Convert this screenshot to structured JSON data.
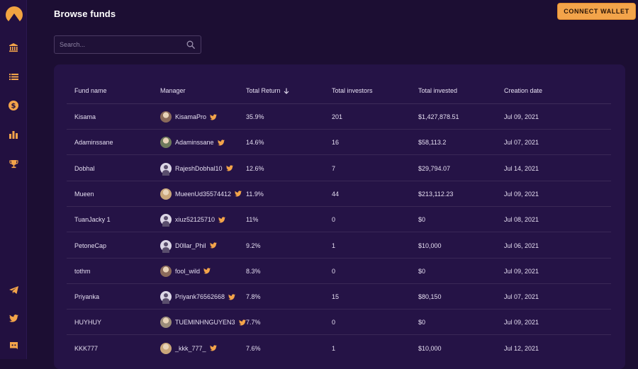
{
  "header": {
    "title": "Browse funds",
    "connect_label": "CONNECT WALLET"
  },
  "search": {
    "placeholder": "Search..."
  },
  "colors": {
    "accent": "#f3a44a",
    "background": "#1c0e33",
    "panel": "#251346"
  },
  "sidebar": {
    "icons": [
      "logo-icon",
      "bank-icon",
      "list-icon",
      "dollar-icon",
      "bar-chart-icon",
      "trophy-icon",
      "telegram-icon",
      "twitter-icon",
      "discord-icon"
    ]
  },
  "table": {
    "columns": {
      "fund_name": "Fund name",
      "manager": "Manager",
      "total_return": "Total Return",
      "total_investors": "Total investors",
      "total_invested": "Total invested",
      "creation_date": "Creation date"
    },
    "sort_indicator": "descending",
    "rows": [
      {
        "fund": "Kisama",
        "manager": "KisamaPro",
        "avatar": "photo",
        "return": "35.9%",
        "investors": "201",
        "invested": "$1,427,878.51",
        "date": "Jul 09, 2021"
      },
      {
        "fund": "Adaminssane",
        "manager": "Adaminssane",
        "avatar": "photo",
        "return": "14.6%",
        "investors": "16",
        "invested": "$58,113.2",
        "date": "Jul 07, 2021"
      },
      {
        "fund": "Dobhal",
        "manager": "RajeshDobhal10",
        "avatar": "default",
        "return": "12.6%",
        "investors": "7",
        "invested": "$29,794.07",
        "date": "Jul 14, 2021"
      },
      {
        "fund": "Mueen",
        "manager": "MueenUd35574412",
        "avatar": "photo",
        "return": "11.9%",
        "investors": "44",
        "invested": "$213,112.23",
        "date": "Jul 09, 2021"
      },
      {
        "fund": "TuanJacky 1",
        "manager": "xiuz52125710",
        "avatar": "default",
        "return": "11%",
        "investors": "0",
        "invested": "$0",
        "date": "Jul 08, 2021"
      },
      {
        "fund": "PetoneCap",
        "manager": "D0llar_Phil",
        "avatar": "default",
        "return": "9.2%",
        "investors": "1",
        "invested": "$10,000",
        "date": "Jul 06, 2021"
      },
      {
        "fund": "tothm",
        "manager": "fool_wild",
        "avatar": "photo",
        "return": "8.3%",
        "investors": "0",
        "invested": "$0",
        "date": "Jul 09, 2021"
      },
      {
        "fund": "Priyanka",
        "manager": "Priyank76562668",
        "avatar": "default",
        "return": "7.8%",
        "investors": "15",
        "invested": "$80,150",
        "date": "Jul 07, 2021"
      },
      {
        "fund": "HUYHUY",
        "manager": "TUEMINHNGUYEN3",
        "avatar": "photo",
        "return": "7.7%",
        "investors": "0",
        "invested": "$0",
        "date": "Jul 09, 2021"
      },
      {
        "fund": "KKK777",
        "manager": "_kkk_777_",
        "avatar": "photo",
        "return": "7.6%",
        "investors": "1",
        "invested": "$10,000",
        "date": "Jul 12, 2021"
      }
    ]
  }
}
